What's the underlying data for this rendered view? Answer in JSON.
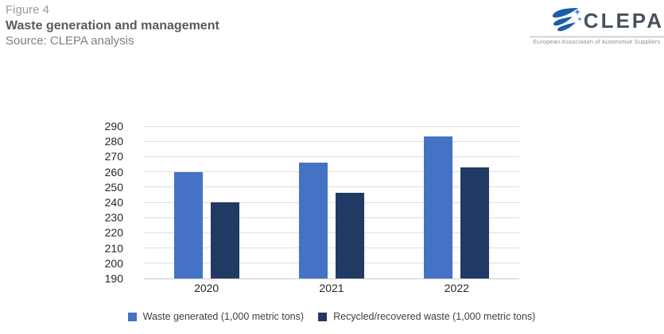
{
  "header": {
    "figure_label": "Figure 4",
    "title": "Waste generation and management",
    "source": "Source: CLEPA analysis"
  },
  "logo": {
    "wordmark": "CLEPA",
    "tagline": "European Association of Automotive Suppliers",
    "swoosh_color": "#1a5da8",
    "wordmark_color": "#47525c"
  },
  "chart_data": {
    "type": "bar",
    "categories": [
      "2020",
      "2021",
      "2022"
    ],
    "series": [
      {
        "name": "Waste generated (1,000 metric tons)",
        "color": "#4472C4",
        "values": [
          260,
          266,
          283
        ]
      },
      {
        "name": "Recycled/recovered waste (1,000 metric tons)",
        "color": "#213A63",
        "values": [
          240,
          246,
          263
        ]
      }
    ],
    "ylim": [
      190,
      290
    ],
    "ytick_step": 10,
    "grid": true,
    "legend_position": "bottom",
    "xlabel": "",
    "ylabel": ""
  },
  "colors": {
    "gridline": "#dedede",
    "baseline": "#c9c9c9",
    "axis_text": "#262626",
    "legend_text": "#404040"
  }
}
